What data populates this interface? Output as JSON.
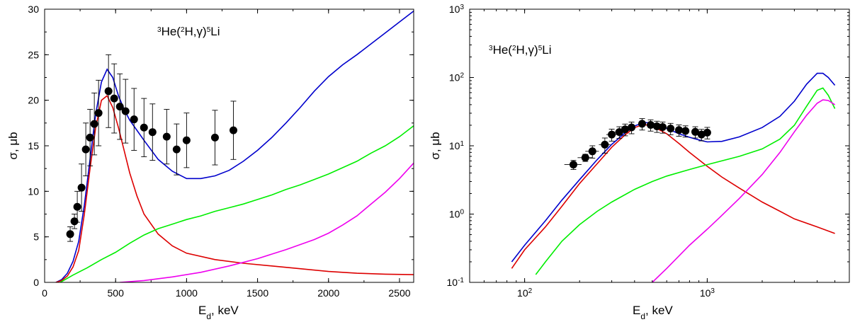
{
  "chart_data": [
    {
      "type": "line",
      "title": "3He(2H,γ)5Li",
      "title_parts": {
        "m1": "3",
        "t1": "He(",
        "m2": "2",
        "t2": "H,γ)",
        "m3": "5",
        "t3": "Li"
      },
      "xlabel": {
        "main": "E",
        "sub": "d",
        "rest": ", keV"
      },
      "ylabel": "σ, μb",
      "xscale": "linear",
      "yscale": "linear",
      "xlim": [
        0,
        2600
      ],
      "ylim": [
        0,
        30
      ],
      "xticks": [
        0,
        500,
        1000,
        1500,
        2000,
        2500
      ],
      "xtick_labels": [
        "0",
        "500",
        "1000",
        "1500",
        "2000",
        "2500"
      ],
      "yticks": [
        0,
        5,
        10,
        15,
        20,
        25,
        30
      ],
      "ytick_labels": [
        "0",
        "5",
        "10",
        "15",
        "20",
        "25",
        "30"
      ],
      "grid": false,
      "legend": "none",
      "series": [
        {
          "color": "#0000cc",
          "x": [
            80,
            120,
            160,
            200,
            240,
            280,
            320,
            360,
            400,
            440,
            480,
            520,
            560,
            600,
            650,
            700,
            800,
            900,
            1000,
            1100,
            1200,
            1300,
            1400,
            1500,
            1600,
            1700,
            1800,
            1900,
            2000,
            2100,
            2200,
            2300,
            2400,
            2500,
            2600
          ],
          "y": [
            0,
            0.3,
            1.0,
            2.3,
            4.5,
            8.5,
            13.5,
            18.5,
            22.0,
            23.4,
            22.5,
            20.5,
            19.0,
            17.8,
            16.7,
            15.6,
            13.5,
            12.2,
            11.4,
            11.4,
            11.7,
            12.3,
            13.3,
            14.5,
            15.9,
            17.5,
            19.2,
            21.0,
            22.6,
            23.9,
            25.0,
            26.2,
            27.4,
            28.6,
            29.8
          ]
        },
        {
          "color": "#dd0000",
          "x": [
            80,
            120,
            160,
            200,
            240,
            280,
            320,
            360,
            400,
            440,
            480,
            520,
            560,
            600,
            650,
            700,
            800,
            900,
            1000,
            1200,
            1400,
            1600,
            1800,
            2000,
            2200,
            2400,
            2600
          ],
          "y": [
            0,
            0.2,
            0.7,
            1.7,
            3.5,
            7.5,
            12.5,
            17.0,
            20.0,
            20.5,
            19.2,
            17.0,
            14.5,
            12.0,
            9.5,
            7.5,
            5.3,
            4.0,
            3.2,
            2.5,
            2.1,
            1.8,
            1.5,
            1.2,
            1.0,
            0.9,
            0.85
          ]
        },
        {
          "color": "#00ee00",
          "x": [
            110,
            200,
            300,
            400,
            500,
            600,
            700,
            800,
            900,
            1000,
            1100,
            1200,
            1300,
            1400,
            1500,
            1600,
            1700,
            1800,
            1900,
            2000,
            2100,
            2200,
            2300,
            2400,
            2500,
            2600
          ],
          "y": [
            0,
            0.8,
            1.6,
            2.5,
            3.3,
            4.3,
            5.2,
            5.9,
            6.4,
            6.9,
            7.3,
            7.8,
            8.2,
            8.6,
            9.1,
            9.6,
            10.2,
            10.7,
            11.3,
            11.9,
            12.6,
            13.3,
            14.2,
            15.0,
            16.0,
            17.2
          ]
        },
        {
          "color": "#ee00ee",
          "x": [
            530,
            700,
            900,
            1100,
            1300,
            1500,
            1700,
            1900,
            2000,
            2100,
            2200,
            2300,
            2400,
            2500,
            2600
          ],
          "y": [
            0,
            0.2,
            0.6,
            1.1,
            1.8,
            2.6,
            3.6,
            4.7,
            5.4,
            6.3,
            7.3,
            8.6,
            9.9,
            11.4,
            13.1
          ]
        }
      ],
      "points": [
        {
          "x": 180,
          "y": 5.3,
          "yerr": 0.8
        },
        {
          "x": 210,
          "y": 6.7,
          "yerr": 0.8
        },
        {
          "x": 230,
          "y": 8.3,
          "yerr": 1.7
        },
        {
          "x": 260,
          "y": 10.4,
          "yerr": 2.6
        },
        {
          "x": 290,
          "y": 14.6,
          "yerr": 2.9
        },
        {
          "x": 320,
          "y": 15.9,
          "yerr": 3.1
        },
        {
          "x": 350,
          "y": 17.4,
          "yerr": 3.4
        },
        {
          "x": 380,
          "y": 18.6,
          "yerr": 3.6
        },
        {
          "x": 450,
          "y": 21.0,
          "yerr": 4.0
        },
        {
          "x": 490,
          "y": 20.2,
          "yerr": 3.8
        },
        {
          "x": 530,
          "y": 19.3,
          "yerr": 3.6
        },
        {
          "x": 570,
          "y": 18.8,
          "yerr": 3.5
        },
        {
          "x": 630,
          "y": 17.9,
          "yerr": 3.4
        },
        {
          "x": 700,
          "y": 17.0,
          "yerr": 3.2
        },
        {
          "x": 760,
          "y": 16.5,
          "yerr": 3.1
        },
        {
          "x": 860,
          "y": 16.0,
          "yerr": 3.0
        },
        {
          "x": 930,
          "y": 14.6,
          "yerr": 2.8
        },
        {
          "x": 1000,
          "y": 15.6,
          "yerr": 3.0
        },
        {
          "x": 1200,
          "y": 15.9,
          "yerr": 3.0
        },
        {
          "x": 1330,
          "y": 16.7,
          "yerr": 3.2
        }
      ]
    },
    {
      "type": "line",
      "title": "3He(2H,γ)5Li",
      "title_parts": {
        "m1": "3",
        "t1": "He(",
        "m2": "2",
        "t2": "H,γ)",
        "m3": "5",
        "t3": "Li"
      },
      "xlabel": {
        "main": "E",
        "sub": "d",
        "rest": ", keV"
      },
      "ylabel": "σ, μb",
      "xscale": "log",
      "yscale": "log",
      "xlim": [
        50,
        6000
      ],
      "ylim": [
        0.1,
        1000
      ],
      "xticks": [
        100,
        1000
      ],
      "xtick_labels": [
        {
          "base": "10",
          "exp": "2"
        },
        {
          "base": "10",
          "exp": "3"
        }
      ],
      "yticks": [
        0.1,
        1,
        10,
        100,
        1000
      ],
      "ytick_labels": [
        {
          "base": "10",
          "exp": "-1"
        },
        {
          "base": "10",
          "exp": "0"
        },
        {
          "base": "10",
          "exp": "1"
        },
        {
          "base": "10",
          "exp": "2"
        },
        {
          "base": "10",
          "exp": "3"
        }
      ],
      "grid": false,
      "legend": "none",
      "series": [
        {
          "color": "#0000cc",
          "x": [
            85,
            100,
            130,
            160,
            200,
            250,
            300,
            350,
            400,
            450,
            500,
            600,
            700,
            800,
            900,
            1000,
            1200,
            1500,
            2000,
            2500,
            3000,
            3500,
            4000,
            4300,
            4600,
            5000
          ],
          "y": [
            0.2,
            0.35,
            0.8,
            1.6,
            3.2,
            6.3,
            10.5,
            15.0,
            19.5,
            22.0,
            21.5,
            18.0,
            15.0,
            13.3,
            12.2,
            11.4,
            11.6,
            13.5,
            18.5,
            27.0,
            45.0,
            80.0,
            115.0,
            115.0,
            100.0,
            77.0
          ]
        },
        {
          "color": "#dd0000",
          "x": [
            85,
            100,
            130,
            160,
            200,
            250,
            300,
            350,
            400,
            450,
            500,
            600,
            700,
            800,
            1000,
            1200,
            1500,
            2000,
            2500,
            3000,
            4000,
            5000
          ],
          "y": [
            0.16,
            0.3,
            0.65,
            1.3,
            2.8,
            5.5,
            9.5,
            14.0,
            18.5,
            20.5,
            19.5,
            15.0,
            10.8,
            8.0,
            5.0,
            3.5,
            2.4,
            1.5,
            1.1,
            0.85,
            0.65,
            0.52
          ]
        },
        {
          "color": "#00ee00",
          "x": [
            115,
            130,
            160,
            200,
            250,
            300,
            400,
            500,
            600,
            800,
            1000,
            1500,
            2000,
            2500,
            3000,
            3500,
            4000,
            4300,
            4600,
            5000
          ],
          "y": [
            0.13,
            0.2,
            0.4,
            0.7,
            1.1,
            1.5,
            2.3,
            3.0,
            3.6,
            4.5,
            5.3,
            7.0,
            9.0,
            12.5,
            20.0,
            38.0,
            65.0,
            70.0,
            55.0,
            35.0
          ]
        },
        {
          "color": "#ee00ee",
          "x": [
            500,
            600,
            800,
            1000,
            1200,
            1500,
            2000,
            2500,
            3000,
            3500,
            4000,
            4300,
            4600,
            5000
          ],
          "y": [
            0.1,
            0.16,
            0.35,
            0.6,
            0.95,
            1.7,
            3.8,
            8.0,
            16.0,
            28.0,
            42.0,
            47.0,
            46.0,
            40.0
          ]
        }
      ],
      "points": [
        {
          "x": 185,
          "y": 5.3,
          "yerr": 0.8,
          "xerr": 20
        },
        {
          "x": 215,
          "y": 6.7,
          "yerr": 0.8,
          "xerr": 20
        },
        {
          "x": 235,
          "y": 8.3,
          "yerr": 1.7,
          "xerr": 20
        },
        {
          "x": 275,
          "y": 10.4,
          "yerr": 2.6,
          "xerr": 20
        },
        {
          "x": 300,
          "y": 14.6,
          "yerr": 2.9,
          "xerr": 20
        },
        {
          "x": 330,
          "y": 15.9,
          "yerr": 3.1,
          "xerr": 20
        },
        {
          "x": 355,
          "y": 17.4,
          "yerr": 3.4,
          "xerr": 20
        },
        {
          "x": 385,
          "y": 18.6,
          "yerr": 3.6,
          "xerr": 20
        },
        {
          "x": 440,
          "y": 21.0,
          "yerr": 4.0,
          "xerr": 20
        },
        {
          "x": 490,
          "y": 20.2,
          "yerr": 3.8,
          "xerr": 20
        },
        {
          "x": 530,
          "y": 19.3,
          "yerr": 3.6,
          "xerr": 20
        },
        {
          "x": 570,
          "y": 18.8,
          "yerr": 3.5,
          "xerr": 20
        },
        {
          "x": 630,
          "y": 17.9,
          "yerr": 3.4,
          "xerr": 20
        },
        {
          "x": 700,
          "y": 17.0,
          "yerr": 3.2,
          "xerr": 20
        },
        {
          "x": 760,
          "y": 16.5,
          "yerr": 3.1,
          "xerr": 20
        },
        {
          "x": 860,
          "y": 16.0,
          "yerr": 3.0,
          "xerr": 20
        },
        {
          "x": 930,
          "y": 14.6,
          "yerr": 2.8,
          "xerr": 20
        },
        {
          "x": 1000,
          "y": 15.6,
          "yerr": 3.0,
          "xerr": 20
        }
      ]
    }
  ]
}
